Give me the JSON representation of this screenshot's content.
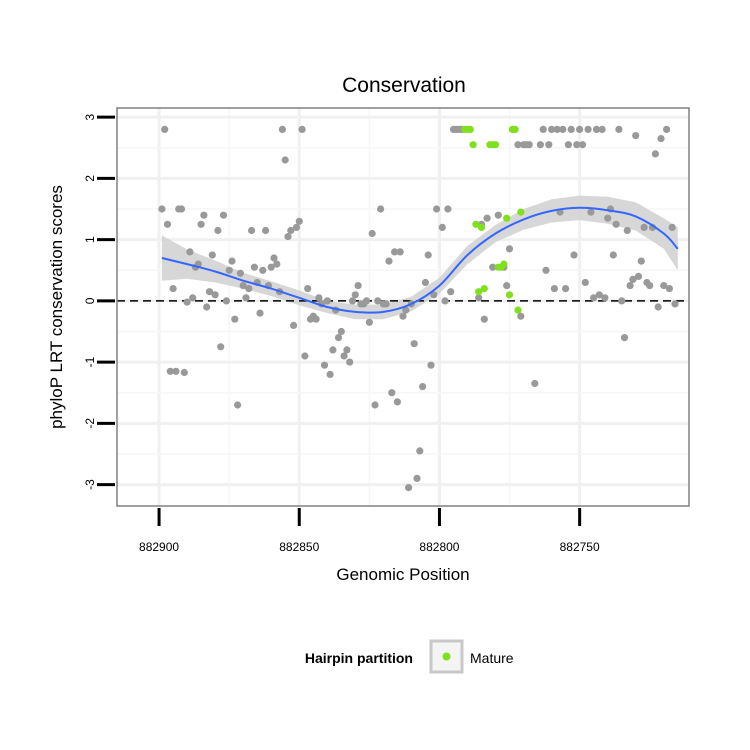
{
  "chart_data": {
    "type": "scatter",
    "title": "Conservation",
    "xlabel": "Genomic Position",
    "ylabel": "phyloP LRT conservation scores",
    "x_reversed": true,
    "xlim": [
      882915,
      882711
    ],
    "ylim": [
      -3.35,
      3.15
    ],
    "xticks": [
      882900,
      882850,
      882800,
      882750
    ],
    "yticks": [
      -3,
      -2,
      -1,
      0,
      1,
      2,
      3
    ],
    "ytick_labels": [
      "-3",
      "-2",
      "-1",
      "0",
      "1",
      "2",
      "3"
    ],
    "grid": true,
    "reference_line": {
      "y": 0,
      "style": "dashed",
      "color": "#000000"
    },
    "colors": {
      "other": "#999999",
      "mature": "#7FE01E",
      "smooth": "#3366FF",
      "ribbon": "#D3D3D3",
      "panel_border": "#808080"
    },
    "legend": {
      "title": "Hairpin partition",
      "placement": "bottom",
      "entries": [
        {
          "label": "Mature",
          "color": "#7FE01E"
        }
      ]
    },
    "series": [
      {
        "name": "",
        "color": "#999999",
        "points": [
          [
            882898,
            2.8
          ],
          [
            882899,
            1.5
          ],
          [
            882897,
            1.25
          ],
          [
            882896,
            -1.15
          ],
          [
            882895,
            0.2
          ],
          [
            882894,
            -1.15
          ],
          [
            882893,
            1.5
          ],
          [
            882892,
            1.5
          ],
          [
            882891,
            -1.17
          ],
          [
            882890,
            -0.02
          ],
          [
            882889,
            0.8
          ],
          [
            882888,
            0.05
          ],
          [
            882887,
            0.55
          ],
          [
            882886,
            0.6
          ],
          [
            882885,
            1.25
          ],
          [
            882884,
            1.4
          ],
          [
            882883,
            -0.1
          ],
          [
            882882,
            0.15
          ],
          [
            882881,
            0.75
          ],
          [
            882880,
            0.1
          ],
          [
            882879,
            1.15
          ],
          [
            882878,
            -0.75
          ],
          [
            882877,
            1.4
          ],
          [
            882876,
            0.0
          ],
          [
            882875,
            0.5
          ],
          [
            882874,
            0.65
          ],
          [
            882873,
            -0.3
          ],
          [
            882872,
            -1.7
          ],
          [
            882871,
            0.45
          ],
          [
            882870,
            0.25
          ],
          [
            882869,
            0.05
          ],
          [
            882868,
            0.2
          ],
          [
            882867,
            1.15
          ],
          [
            882866,
            0.55
          ],
          [
            882865,
            0.3
          ],
          [
            882864,
            -0.2
          ],
          [
            882863,
            0.5
          ],
          [
            882862,
            1.15
          ],
          [
            882861,
            0.25
          ],
          [
            882860,
            0.55
          ],
          [
            882859,
            0.7
          ],
          [
            882858,
            0.6
          ],
          [
            882857,
            0.15
          ],
          [
            882856,
            2.8
          ],
          [
            882855,
            2.3
          ],
          [
            882854,
            1.05
          ],
          [
            882853,
            1.15
          ],
          [
            882852,
            -0.4
          ],
          [
            882851,
            1.2
          ],
          [
            882850,
            1.3
          ],
          [
            882849,
            2.8
          ],
          [
            882848,
            -0.9
          ],
          [
            882847,
            0.2
          ],
          [
            882846,
            -0.3
          ],
          [
            882845,
            -0.25
          ],
          [
            882844,
            -0.3
          ],
          [
            882843,
            0.05
          ],
          [
            882842,
            -0.05
          ],
          [
            882841,
            -1.05
          ],
          [
            882840,
            0.0
          ],
          [
            882839,
            -1.2
          ],
          [
            882838,
            -0.8
          ],
          [
            882837,
            -0.15
          ],
          [
            882836,
            -0.6
          ],
          [
            882835,
            -0.5
          ],
          [
            882834,
            -0.9
          ],
          [
            882833,
            -0.8
          ],
          [
            882832,
            -1.0
          ],
          [
            882831,
            0.0
          ],
          [
            882830,
            0.1
          ],
          [
            882829,
            0.25
          ],
          [
            882828,
            -0.05
          ],
          [
            882827,
            -0.05
          ],
          [
            882826,
            0.0
          ],
          [
            882825,
            -0.35
          ],
          [
            882824,
            1.1
          ],
          [
            882823,
            -1.7
          ],
          [
            882822,
            0.0
          ],
          [
            882821,
            1.5
          ],
          [
            882820,
            -0.05
          ],
          [
            882819,
            -0.05
          ],
          [
            882818,
            0.65
          ],
          [
            882817,
            -1.5
          ],
          [
            882816,
            0.8
          ],
          [
            882815,
            -1.65
          ],
          [
            882814,
            0.8
          ],
          [
            882813,
            -0.25
          ],
          [
            882812,
            -0.15
          ],
          [
            882811,
            -3.05
          ],
          [
            882810,
            -0.05
          ],
          [
            882809,
            -0.7
          ],
          [
            882808,
            -2.9
          ],
          [
            882807,
            -2.45
          ],
          [
            882806,
            -1.4
          ],
          [
            882805,
            0.3
          ],
          [
            882804,
            0.75
          ],
          [
            882803,
            -1.05
          ],
          [
            882802,
            0.1
          ],
          [
            882801,
            1.5
          ],
          [
            882799,
            1.2
          ],
          [
            882798,
            0.0
          ],
          [
            882797,
            1.5
          ],
          [
            882796,
            0.15
          ],
          [
            882795,
            2.8
          ],
          [
            882794,
            2.8
          ],
          [
            882793,
            2.8
          ],
          [
            882792,
            2.8
          ],
          [
            882786,
            0.05
          ],
          [
            882785,
            1.25
          ],
          [
            882784,
            -0.3
          ],
          [
            882783,
            1.35
          ],
          [
            882781,
            0.55
          ],
          [
            882779,
            1.4
          ],
          [
            882777,
            0.55
          ],
          [
            882776,
            0.25
          ],
          [
            882775,
            0.85
          ],
          [
            882772,
            2.55
          ],
          [
            882771,
            -0.25
          ],
          [
            882770,
            2.55
          ],
          [
            882769,
            2.55
          ],
          [
            882768,
            2.55
          ],
          [
            882766,
            -1.35
          ],
          [
            882764,
            2.55
          ],
          [
            882763,
            2.8
          ],
          [
            882762,
            0.5
          ],
          [
            882761,
            2.55
          ],
          [
            882760,
            2.8
          ],
          [
            882759,
            0.2
          ],
          [
            882758,
            2.8
          ],
          [
            882757,
            1.45
          ],
          [
            882756,
            2.8
          ],
          [
            882755,
            0.2
          ],
          [
            882754,
            2.55
          ],
          [
            882753,
            2.8
          ],
          [
            882752,
            0.75
          ],
          [
            882751,
            2.55
          ],
          [
            882750,
            2.8
          ],
          [
            882749,
            2.55
          ],
          [
            882748,
            0.3
          ],
          [
            882747,
            2.8
          ],
          [
            882746,
            1.45
          ],
          [
            882745,
            0.05
          ],
          [
            882744,
            2.8
          ],
          [
            882743,
            0.1
          ],
          [
            882742,
            2.8
          ],
          [
            882741,
            0.05
          ],
          [
            882740,
            1.35
          ],
          [
            882739,
            1.5
          ],
          [
            882738,
            0.75
          ],
          [
            882737,
            1.25
          ],
          [
            882736,
            2.8
          ],
          [
            882735,
            0.0
          ],
          [
            882734,
            -0.6
          ],
          [
            882733,
            1.15
          ],
          [
            882732,
            0.25
          ],
          [
            882731,
            0.35
          ],
          [
            882730,
            2.7
          ],
          [
            882729,
            0.4
          ],
          [
            882728,
            0.65
          ],
          [
            882727,
            1.2
          ],
          [
            882726,
            0.3
          ],
          [
            882725,
            0.25
          ],
          [
            882724,
            1.2
          ],
          [
            882723,
            2.4
          ],
          [
            882722,
            -0.1
          ],
          [
            882721,
            2.65
          ],
          [
            882720,
            0.25
          ],
          [
            882719,
            2.8
          ],
          [
            882718,
            0.2
          ],
          [
            882717,
            1.2
          ],
          [
            882716,
            -0.05
          ]
        ]
      },
      {
        "name": "Mature",
        "color": "#7FE01E",
        "points": [
          [
            882791,
            2.8
          ],
          [
            882790,
            2.8
          ],
          [
            882789,
            2.8
          ],
          [
            882788,
            2.55
          ],
          [
            882787,
            1.25
          ],
          [
            882786,
            0.15
          ],
          [
            882785,
            1.2
          ],
          [
            882784,
            0.2
          ],
          [
            882782,
            2.55
          ],
          [
            882781,
            2.55
          ],
          [
            882780,
            2.55
          ],
          [
            882779,
            0.55
          ],
          [
            882778,
            0.55
          ],
          [
            882777,
            0.6
          ],
          [
            882776,
            1.35
          ],
          [
            882775,
            0.1
          ],
          [
            882774,
            2.8
          ],
          [
            882773,
            2.8
          ],
          [
            882772,
            -0.15
          ],
          [
            882771,
            1.45
          ]
        ]
      }
    ],
    "smooth": {
      "x": [
        882899,
        882890,
        882880,
        882870,
        882860,
        882850,
        882840,
        882830,
        882820,
        882810,
        882800,
        882790,
        882780,
        882770,
        882760,
        882750,
        882740,
        882730,
        882720,
        882715
      ],
      "y": [
        0.7,
        0.6,
        0.48,
        0.33,
        0.2,
        0.05,
        -0.1,
        -0.18,
        -0.18,
        -0.05,
        0.25,
        0.75,
        1.1,
        1.33,
        1.47,
        1.52,
        1.48,
        1.38,
        1.1,
        0.85
      ],
      "ribbon_lower": [
        0.33,
        0.36,
        0.3,
        0.2,
        0.08,
        -0.07,
        -0.2,
        -0.3,
        -0.3,
        -0.17,
        0.12,
        0.6,
        0.96,
        1.16,
        1.28,
        1.32,
        1.26,
        1.15,
        0.85,
        0.5
      ],
      "ribbon_upper": [
        1.07,
        0.84,
        0.66,
        0.46,
        0.32,
        0.17,
        0.0,
        -0.06,
        -0.06,
        0.07,
        0.38,
        0.9,
        1.24,
        1.5,
        1.66,
        1.72,
        1.7,
        1.61,
        1.35,
        1.2
      ]
    }
  }
}
